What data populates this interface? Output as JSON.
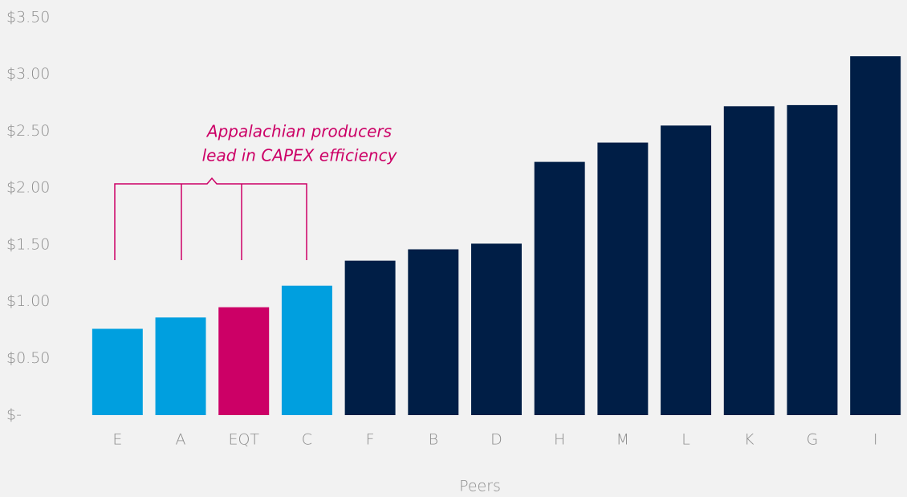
{
  "chart_data": {
    "type": "bar",
    "x_label": "Peers",
    "annotation": [
      "Appalachian producers",
      "lead in CAPEX efficiency"
    ],
    "categories": [
      "E",
      "A",
      "EQT",
      "C",
      "F",
      "B",
      "D",
      "H",
      "M",
      "L",
      "K",
      "G",
      "I"
    ],
    "values": [
      0.76,
      0.86,
      0.95,
      1.14,
      1.36,
      1.46,
      1.51,
      2.23,
      2.4,
      2.55,
      2.72,
      2.73,
      3.16
    ],
    "colors": [
      "#009fdf",
      "#009fdf",
      "#cc0066",
      "#009fdf",
      "#001e46",
      "#001e46",
      "#001e46",
      "#001e46",
      "#001e46",
      "#001e46",
      "#001e46",
      "#001e46",
      "#001e46"
    ],
    "ylim": [
      0,
      3.5
    ],
    "yticks": [
      {
        "value": 0,
        "label": "$-"
      },
      {
        "value": 0.5,
        "label": "$0.50"
      },
      {
        "value": 1,
        "label": "$1.00"
      },
      {
        "value": 1.5,
        "label": "$1.50"
      },
      {
        "value": 2,
        "label": "$2.00"
      },
      {
        "value": 2.5,
        "label": "$2.50"
      },
      {
        "value": 3,
        "label": "$3.00"
      },
      {
        "value": 3.5,
        "label": "$3.50"
      }
    ],
    "grid": false
  }
}
